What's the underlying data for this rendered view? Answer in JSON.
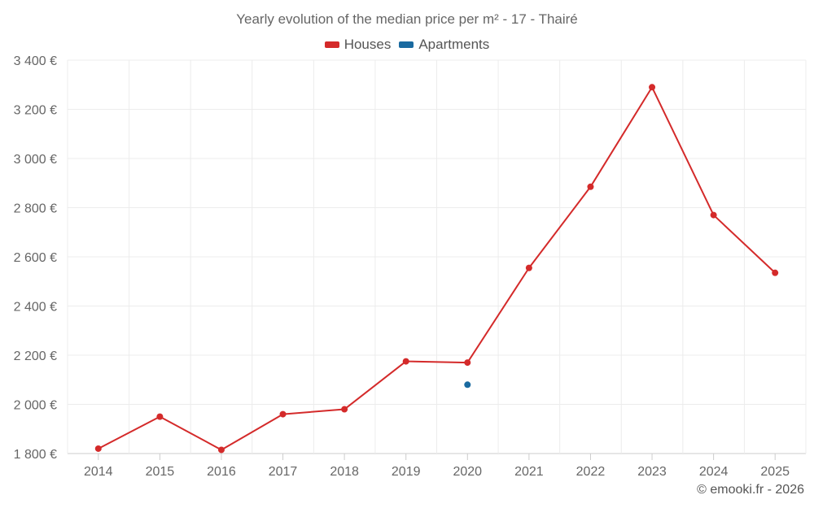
{
  "chart_data": {
    "type": "line",
    "title": "Yearly evolution of the median price per m² - 17 - Thairé",
    "x": [
      "2014",
      "2015",
      "2016",
      "2017",
      "2018",
      "2019",
      "2020",
      "2021",
      "2022",
      "2023",
      "2024",
      "2025"
    ],
    "series": [
      {
        "name": "Houses",
        "color": "#d42a2a",
        "values": [
          1820,
          1950,
          1815,
          1960,
          1980,
          2175,
          2170,
          2555,
          2885,
          3290,
          2770,
          2535
        ]
      },
      {
        "name": "Apartments",
        "color": "#1a6aa0",
        "values": [
          null,
          null,
          null,
          null,
          null,
          null,
          2080,
          null,
          null,
          null,
          null,
          null
        ]
      }
    ],
    "yticks": [
      "1 800 €",
      "2 000 €",
      "2 200 €",
      "2 400 €",
      "2 600 €",
      "2 800 €",
      "3 000 €",
      "3 200 €",
      "3 400 €"
    ],
    "ylim": [
      1800,
      3400
    ],
    "grid": true,
    "legend": "top-center"
  },
  "credit": "© emooki.fr - 2026"
}
